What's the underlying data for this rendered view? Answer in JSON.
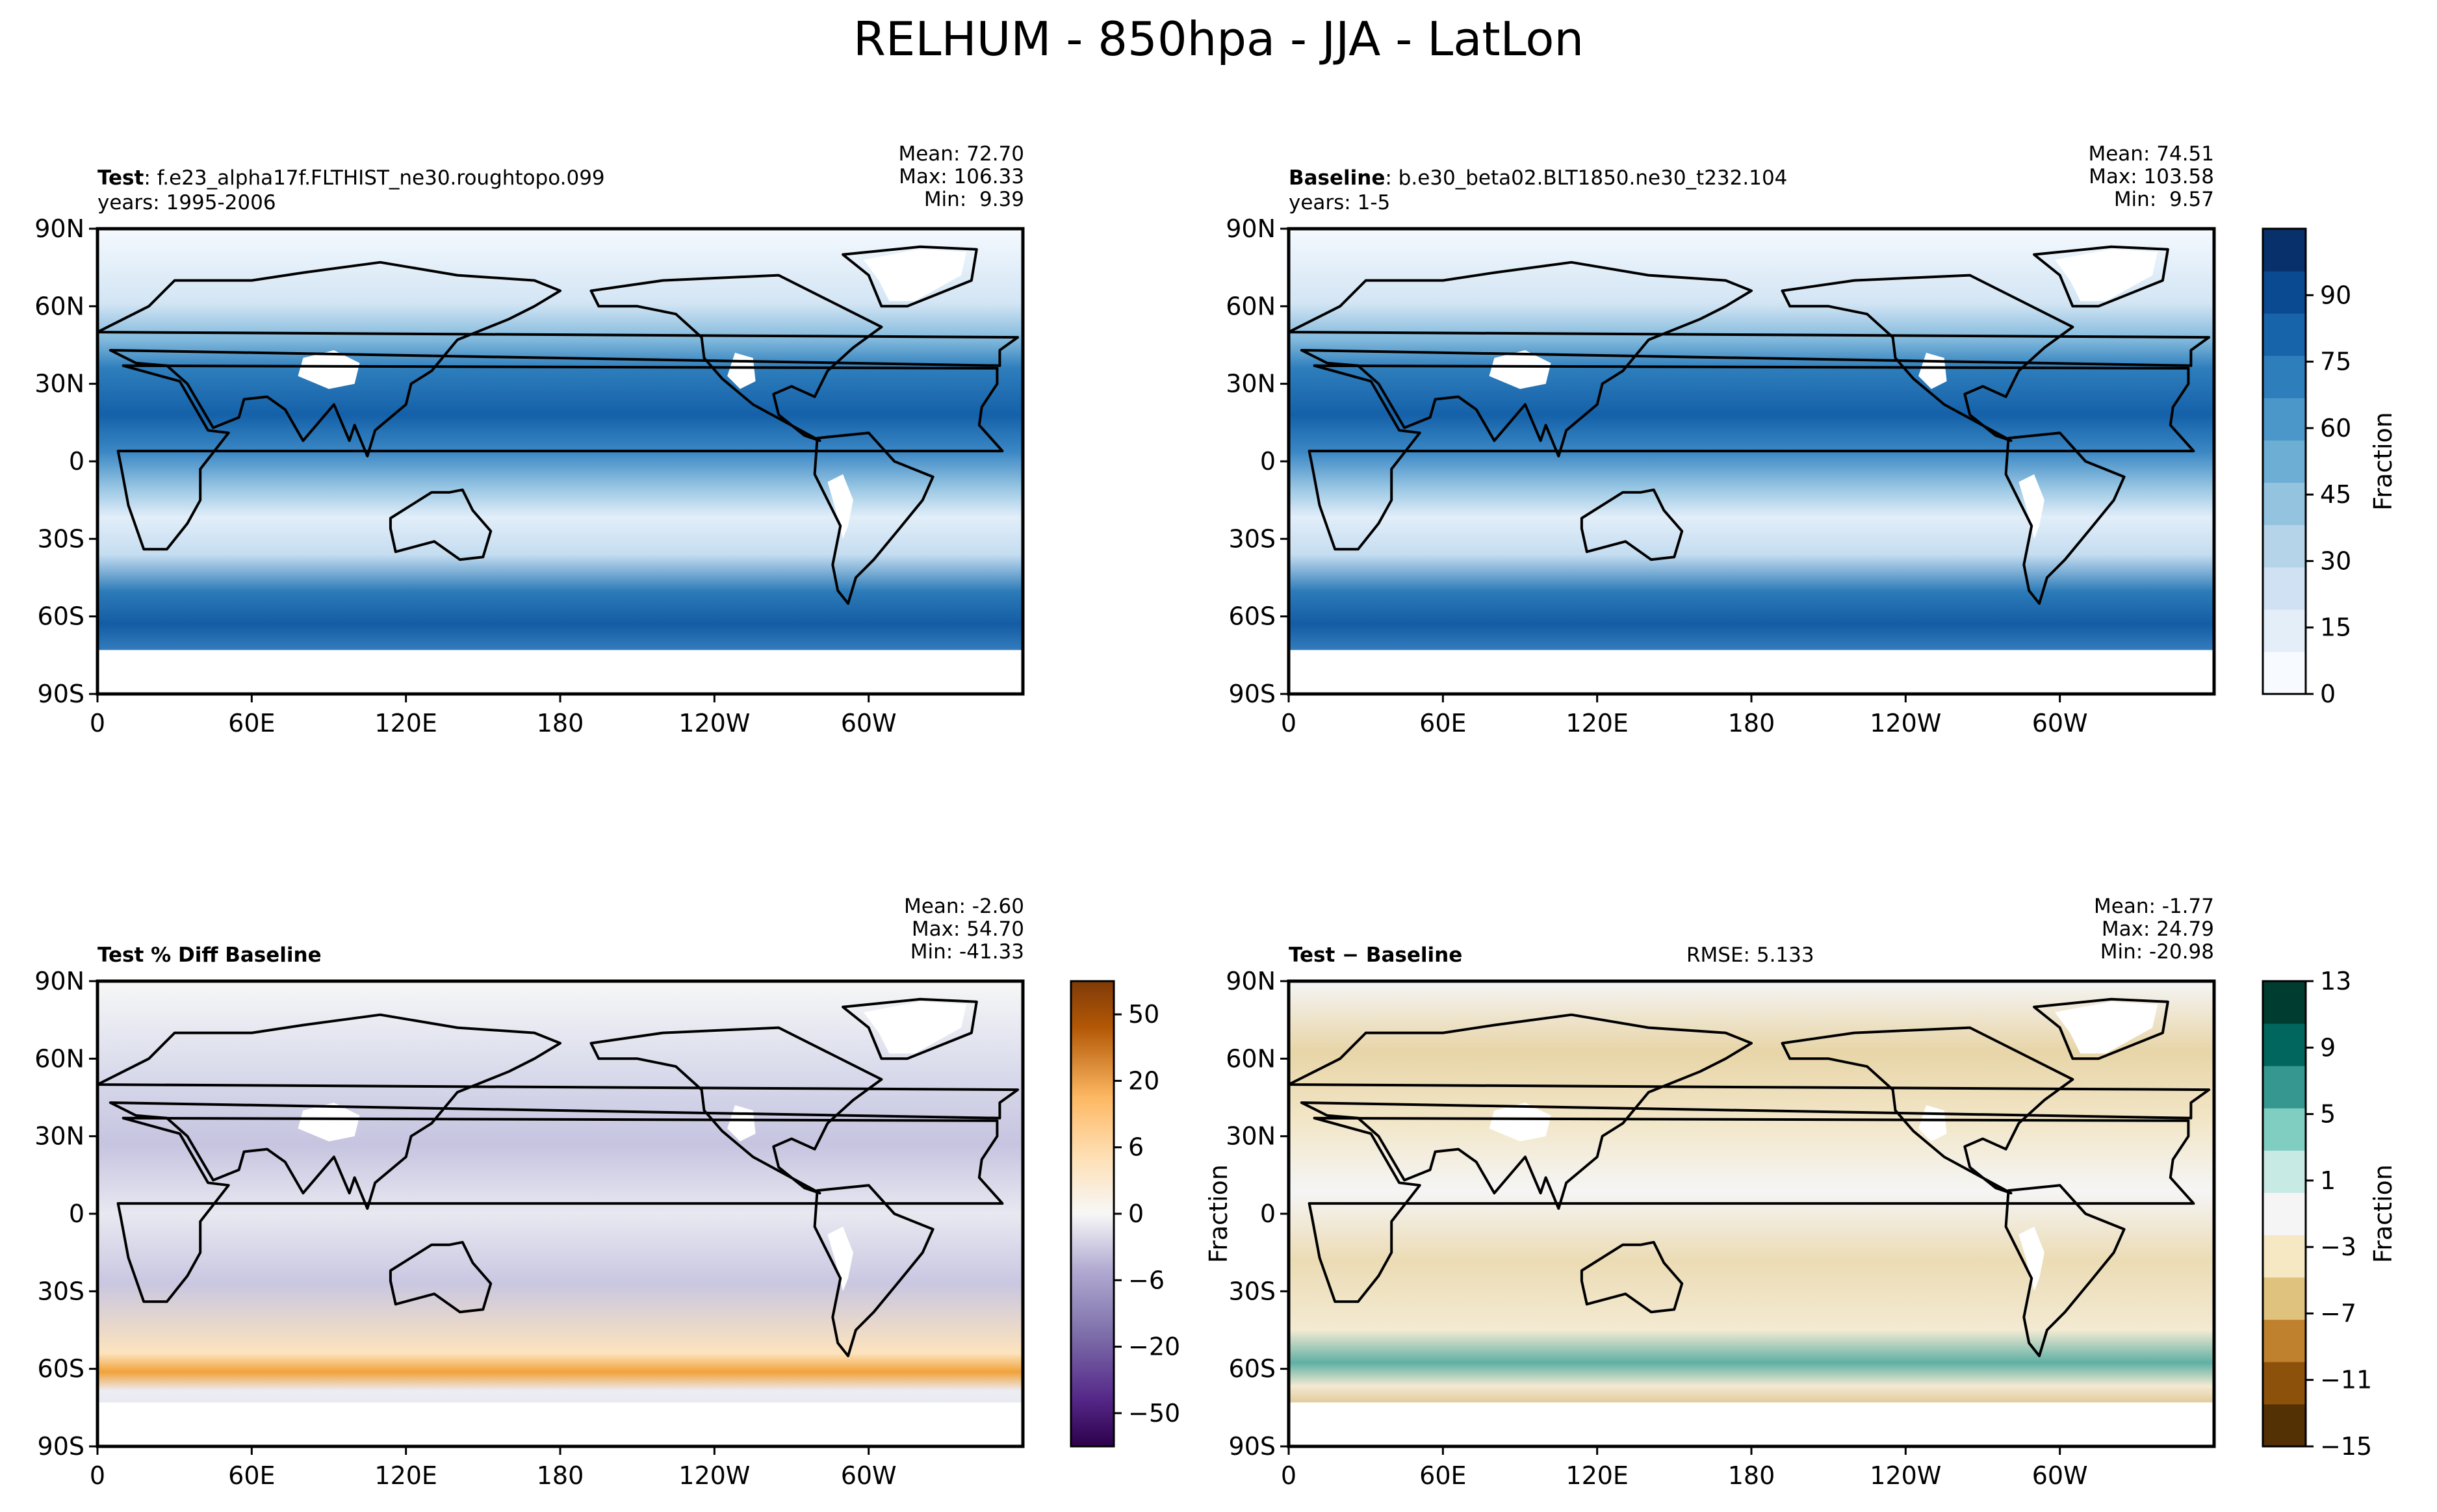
{
  "figure": {
    "title": "RELHUM - 850hpa - JJA - LatLon"
  },
  "axes": {
    "x_ticks": [
      "0",
      "60E",
      "120E",
      "180",
      "120W",
      "60W"
    ],
    "y_ticks": [
      "90N",
      "60N",
      "30N",
      "0",
      "30S",
      "60S",
      "90S"
    ]
  },
  "panels": [
    {
      "id": "test",
      "label_bold": "Test",
      "label_text": ": f.e23_alpha17f.FLTHIST_ne30.roughtopo.099",
      "years": "years: 1995-2006",
      "mean": "Mean: 72.70",
      "max": "Max: 106.33",
      "min": "Min:  9.39",
      "rmse": "",
      "ylabel": ""
    },
    {
      "id": "baseline",
      "label_bold": "Baseline",
      "label_text": ": b.e30_beta02.BLT1850.ne30_t232.104",
      "years": "years: 1-5",
      "mean": "Mean: 74.51",
      "max": "Max: 103.58",
      "min": "Min:  9.57",
      "rmse": "",
      "ylabel": ""
    },
    {
      "id": "pctdiff",
      "label_bold": "Test % Diff Baseline",
      "label_text": "",
      "years": "",
      "mean": "Mean: -2.60",
      "max": "Max: 54.70",
      "min": "Min: -41.33",
      "rmse": "",
      "ylabel": ""
    },
    {
      "id": "diff",
      "label_bold": "Test − Baseline",
      "label_text": "",
      "years": "",
      "mean": "Mean: -1.77",
      "max": "Max: 24.79",
      "min": "Min: -20.98",
      "rmse": "RMSE: 5.133",
      "ylabel": "Fraction"
    }
  ],
  "colorbars": [
    {
      "id": "abs",
      "label": "Fraction",
      "ticks": [
        "0",
        "15",
        "30",
        "45",
        "60",
        "75",
        "90"
      ],
      "colors": [
        "#f7fbff",
        "#e3eef9",
        "#cfe1f2",
        "#b5d4e9",
        "#93c3df",
        "#6daed5",
        "#4b97c9",
        "#2f7ebc",
        "#1864aa",
        "#0a4a90",
        "#08306b"
      ]
    },
    {
      "id": "pct",
      "label": "",
      "ticks": [
        "−50",
        "−20",
        "−6",
        "0",
        "6",
        "20",
        "50"
      ],
      "colors": [
        "#2d004b",
        "#542788",
        "#8073ac",
        "#b2abd2",
        "#d8daeb",
        "#f7f7f7",
        "#fee0b6",
        "#fdb863",
        "#e08214",
        "#b35806",
        "#7f3b08"
      ]
    },
    {
      "id": "diff",
      "label": "Fraction",
      "ticks": [
        "−15",
        "−11",
        "−7",
        "−3",
        "1",
        "5",
        "9",
        "13"
      ],
      "colors": [
        "#543005",
        "#8c510a",
        "#bf812d",
        "#dfc27d",
        "#f6e8c3",
        "#f5f5f5",
        "#c7eae5",
        "#80cdc1",
        "#35978f",
        "#01665e",
        "#003c30"
      ]
    }
  ],
  "chart_data": [
    {
      "type": "heatmap",
      "title": "Test: f.e23_alpha17f.FLTHIST_ne30.roughtopo.099",
      "variable": "RELHUM 850hPa JJA",
      "units": "Fraction",
      "xlim": [
        0,
        360
      ],
      "ylim": [
        -90,
        90
      ],
      "x_ticks": [
        "0",
        "60E",
        "120E",
        "180",
        "120W",
        "60W"
      ],
      "y_ticks": [
        "90N",
        "60N",
        "30N",
        "0",
        "30S",
        "60S",
        "90S"
      ],
      "colorbar_range": [
        0,
        100
      ],
      "stats": {
        "mean": 72.7,
        "max": 106.33,
        "min": 9.39
      },
      "colormap": "Blues"
    },
    {
      "type": "heatmap",
      "title": "Baseline: b.e30_beta02.BLT1850.ne30_t232.104",
      "variable": "RELHUM 850hPa JJA",
      "units": "Fraction",
      "xlim": [
        0,
        360
      ],
      "ylim": [
        -90,
        90
      ],
      "x_ticks": [
        "0",
        "60E",
        "120E",
        "180",
        "120W",
        "60W"
      ],
      "y_ticks": [
        "90N",
        "60N",
        "30N",
        "0",
        "30S",
        "60S",
        "90S"
      ],
      "colorbar_range": [
        0,
        100
      ],
      "stats": {
        "mean": 74.51,
        "max": 103.58,
        "min": 9.57
      },
      "colormap": "Blues"
    },
    {
      "type": "heatmap",
      "title": "Test % Diff Baseline",
      "units": "%",
      "xlim": [
        0,
        360
      ],
      "ylim": [
        -90,
        90
      ],
      "colorbar_ticks": [
        -50,
        -20,
        -6,
        0,
        6,
        20,
        50
      ],
      "stats": {
        "mean": -2.6,
        "max": 54.7,
        "min": -41.33
      },
      "colormap": "PuOr_r"
    },
    {
      "type": "heatmap",
      "title": "Test − Baseline",
      "units": "Fraction",
      "xlim": [
        0,
        360
      ],
      "ylim": [
        -90,
        90
      ],
      "colorbar_ticks": [
        -15,
        -11,
        -7,
        -3,
        1,
        5,
        9,
        13
      ],
      "stats": {
        "mean": -1.77,
        "max": 24.79,
        "min": -20.98,
        "rmse": 5.133
      },
      "colormap": "BrBG"
    }
  ]
}
